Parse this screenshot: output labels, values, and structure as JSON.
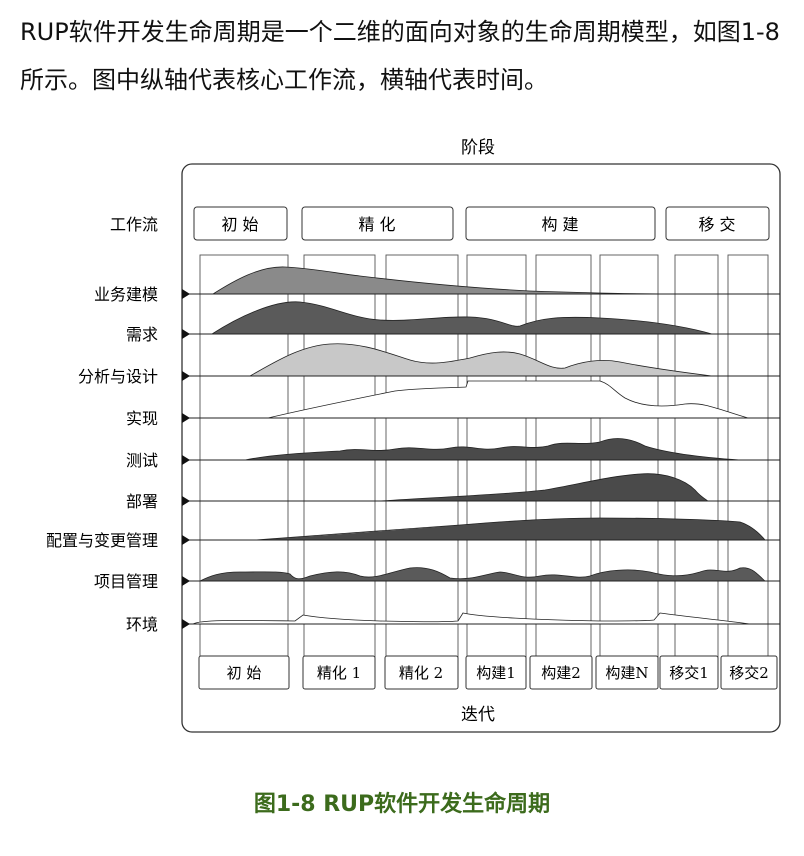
{
  "intro_text": "RUP软件开发生命周期是一个二维的面向对象的生命周期模型，如图1-8所示。图中纵轴代表核心工作流，横轴代表时间。",
  "diagram": {
    "top_label": "阶段",
    "bottom_label": "迭代",
    "workflow_header": "工作流",
    "phases": [
      "初 始",
      "精 化",
      "构 建",
      "移 交"
    ],
    "iterations": [
      "初 始",
      "精化 1",
      "精化 2",
      "构建1",
      "构建2",
      "构建N",
      "移交1",
      "移交2"
    ],
    "workflows": [
      "业务建模",
      "需求",
      "分析与设计",
      "实现",
      "测试",
      "部署",
      "配置与变更管理",
      "项目管理",
      "环境"
    ]
  },
  "caption": "图1-8    RUP软件开发生命周期"
}
